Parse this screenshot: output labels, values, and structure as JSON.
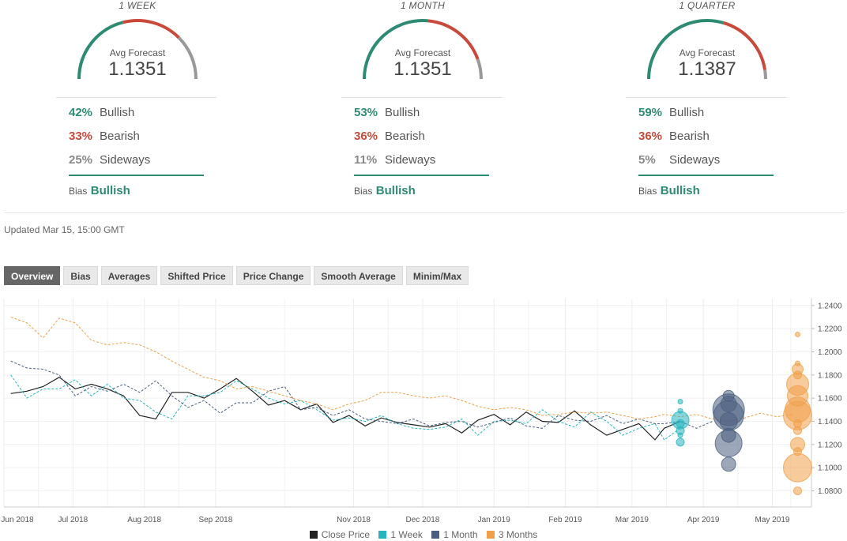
{
  "forecast_panels": [
    {
      "period": "1 WEEK",
      "avg_label": "Avg Forecast",
      "avg_value": "1.1351",
      "bullish_pct": "42%",
      "bullish_label": "Bullish",
      "bearish_pct": "33%",
      "bearish_label": "Bearish",
      "sideways_pct": "25%",
      "sideways_label": "Sideways",
      "bias_label": "Bias",
      "bias_value": "Bullish",
      "gauge": {
        "bullish": 0.42,
        "bearish": 0.33,
        "sideways": 0.25
      }
    },
    {
      "period": "1 MONTH",
      "avg_label": "Avg Forecast",
      "avg_value": "1.1351",
      "bullish_pct": "53%",
      "bullish_label": "Bullish",
      "bearish_pct": "36%",
      "bearish_label": "Bearish",
      "sideways_pct": "11%",
      "sideways_label": "Sideways",
      "bias_label": "Bias",
      "bias_value": "Bullish",
      "gauge": {
        "bullish": 0.53,
        "bearish": 0.36,
        "sideways": 0.11
      }
    },
    {
      "period": "1 QUARTER",
      "avg_label": "Avg Forecast",
      "avg_value": "1.1387",
      "bullish_pct": "59%",
      "bullish_label": "Bullish",
      "bearish_pct": "36%",
      "bearish_label": "Bearish",
      "sideways_pct": "5%",
      "sideways_label": "Sideways",
      "bias_label": "Bias",
      "bias_value": "Bullish",
      "gauge": {
        "bullish": 0.59,
        "bearish": 0.36,
        "sideways": 0.05
      }
    }
  ],
  "updated": "Updated Mar 15, 15:00 GMT",
  "tabs": [
    "Overview",
    "Bias",
    "Averages",
    "Shifted Price",
    "Price Change",
    "Smooth Average",
    "Minim/Max"
  ],
  "active_tab": "Overview",
  "colors": {
    "bullish": "#2e8b73",
    "bearish": "#c9493a",
    "sideways": "#999999",
    "close": "#222222",
    "week": "#26b5bf",
    "month": "#4a5f80",
    "quarter": "#f0a04b"
  },
  "chart_data": {
    "type": "line",
    "x_tick_labels": [
      "Jun 2018",
      "Jul 2018",
      "Aug 2018",
      "Sep 2018",
      "Nov 2018",
      "Dec 2018",
      "Jan 2019",
      "Feb 2019",
      "Mar 2019",
      "Apr 2019",
      "May 2019"
    ],
    "x_ticks": [
      "2018-06-01",
      "2018-07-01",
      "2018-08-01",
      "2018-09-01",
      "2018-10-31",
      "2018-11-30",
      "2018-12-31",
      "2019-01-31",
      "2019-03-01",
      "2019-04-01",
      "2019-05-01"
    ],
    "x_range": [
      "2018-06-01",
      "2019-05-18"
    ],
    "ylim": [
      1.066,
      1.246
    ],
    "y_ticks": [
      1.08,
      1.1,
      1.12,
      1.14,
      1.16,
      1.18,
      1.2,
      1.22,
      1.24
    ],
    "y_tick_labels": [
      "1.0800",
      "1.1000",
      "1.1200",
      "1.1400",
      "1.1600",
      "1.1800",
      "1.2000",
      "1.2200",
      "1.2400"
    ],
    "grid": true,
    "legend_position": "bottom",
    "series": [
      {
        "name": "Close Price",
        "style": "solid",
        "color_key": "close",
        "points": [
          [
            "2018-06-04",
            1.164
          ],
          [
            "2018-06-11",
            1.166
          ],
          [
            "2018-06-18",
            1.17
          ],
          [
            "2018-06-25",
            1.178
          ],
          [
            "2018-07-02",
            1.168
          ],
          [
            "2018-07-09",
            1.172
          ],
          [
            "2018-07-16",
            1.168
          ],
          [
            "2018-07-23",
            1.162
          ],
          [
            "2018-07-30",
            1.145
          ],
          [
            "2018-08-06",
            1.142
          ],
          [
            "2018-08-13",
            1.165
          ],
          [
            "2018-08-20",
            1.165
          ],
          [
            "2018-08-27",
            1.16
          ],
          [
            "2018-09-03",
            1.168
          ],
          [
            "2018-09-10",
            1.177
          ],
          [
            "2018-09-17",
            1.166
          ],
          [
            "2018-09-24",
            1.154
          ],
          [
            "2018-10-01",
            1.158
          ],
          [
            "2018-10-08",
            1.15
          ],
          [
            "2018-10-15",
            1.155
          ],
          [
            "2018-10-22",
            1.139
          ],
          [
            "2018-10-29",
            1.145
          ],
          [
            "2018-11-05",
            1.136
          ],
          [
            "2018-11-12",
            1.143
          ],
          [
            "2018-11-19",
            1.139
          ],
          [
            "2018-11-26",
            1.137
          ],
          [
            "2018-12-03",
            1.135
          ],
          [
            "2018-12-10",
            1.138
          ],
          [
            "2018-12-17",
            1.13
          ],
          [
            "2018-12-24",
            1.141
          ],
          [
            "2018-12-31",
            1.146
          ],
          [
            "2019-01-07",
            1.137
          ],
          [
            "2019-01-14",
            1.148
          ],
          [
            "2019-01-21",
            1.14
          ],
          [
            "2019-01-28",
            1.139
          ],
          [
            "2019-02-04",
            1.149
          ],
          [
            "2019-02-11",
            1.137
          ],
          [
            "2019-02-18",
            1.128
          ],
          [
            "2019-02-25",
            1.133
          ],
          [
            "2019-03-04",
            1.138
          ],
          [
            "2019-03-11",
            1.124
          ],
          [
            "2019-03-15",
            1.134
          ],
          [
            "2019-03-22",
            1.14
          ]
        ]
      },
      {
        "name": "1 Week",
        "style": "dashed",
        "color_key": "week",
        "points": [
          [
            "2018-06-04",
            1.18
          ],
          [
            "2018-06-11",
            1.16
          ],
          [
            "2018-06-18",
            1.168
          ],
          [
            "2018-06-25",
            1.168
          ],
          [
            "2018-07-02",
            1.176
          ],
          [
            "2018-07-09",
            1.162
          ],
          [
            "2018-07-16",
            1.172
          ],
          [
            "2018-07-23",
            1.16
          ],
          [
            "2018-07-30",
            1.158
          ],
          [
            "2018-08-06",
            1.148
          ],
          [
            "2018-08-13",
            1.142
          ],
          [
            "2018-08-20",
            1.162
          ],
          [
            "2018-08-27",
            1.162
          ],
          [
            "2018-09-03",
            1.165
          ],
          [
            "2018-09-10",
            1.175
          ],
          [
            "2018-09-17",
            1.168
          ],
          [
            "2018-09-24",
            1.16
          ],
          [
            "2018-10-01",
            1.155
          ],
          [
            "2018-10-08",
            1.158
          ],
          [
            "2018-10-15",
            1.15
          ],
          [
            "2018-10-22",
            1.141
          ],
          [
            "2018-10-29",
            1.143
          ],
          [
            "2018-11-05",
            1.14
          ],
          [
            "2018-11-12",
            1.145
          ],
          [
            "2018-11-19",
            1.138
          ],
          [
            "2018-11-26",
            1.134
          ],
          [
            "2018-12-03",
            1.133
          ],
          [
            "2018-12-10",
            1.135
          ],
          [
            "2018-12-17",
            1.142
          ],
          [
            "2018-12-24",
            1.128
          ],
          [
            "2018-12-31",
            1.14
          ],
          [
            "2019-01-07",
            1.141
          ],
          [
            "2019-01-14",
            1.138
          ],
          [
            "2019-01-21",
            1.15
          ],
          [
            "2019-01-28",
            1.14
          ],
          [
            "2019-02-04",
            1.135
          ],
          [
            "2019-02-11",
            1.148
          ],
          [
            "2019-02-18",
            1.14
          ],
          [
            "2019-02-25",
            1.128
          ],
          [
            "2019-03-04",
            1.134
          ],
          [
            "2019-03-11",
            1.138
          ],
          [
            "2019-03-15",
            1.124
          ],
          [
            "2019-03-22",
            1.134
          ]
        ]
      },
      {
        "name": "1 Month",
        "style": "dashed",
        "color_key": "month",
        "points": [
          [
            "2018-06-04",
            1.192
          ],
          [
            "2018-06-11",
            1.186
          ],
          [
            "2018-06-18",
            1.185
          ],
          [
            "2018-06-25",
            1.18
          ],
          [
            "2018-07-02",
            1.162
          ],
          [
            "2018-07-09",
            1.17
          ],
          [
            "2018-07-16",
            1.166
          ],
          [
            "2018-07-23",
            1.172
          ],
          [
            "2018-07-30",
            1.165
          ],
          [
            "2018-08-06",
            1.175
          ],
          [
            "2018-08-13",
            1.162
          ],
          [
            "2018-08-20",
            1.152
          ],
          [
            "2018-08-27",
            1.158
          ],
          [
            "2018-09-03",
            1.147
          ],
          [
            "2018-09-10",
            1.156
          ],
          [
            "2018-09-17",
            1.156
          ],
          [
            "2018-09-24",
            1.166
          ],
          [
            "2018-10-01",
            1.17
          ],
          [
            "2018-10-08",
            1.15
          ],
          [
            "2018-10-15",
            1.152
          ],
          [
            "2018-10-22",
            1.145
          ],
          [
            "2018-10-29",
            1.15
          ],
          [
            "2018-11-05",
            1.142
          ],
          [
            "2018-11-12",
            1.14
          ],
          [
            "2018-11-19",
            1.138
          ],
          [
            "2018-11-26",
            1.142
          ],
          [
            "2018-12-03",
            1.136
          ],
          [
            "2018-12-10",
            1.139
          ],
          [
            "2018-12-17",
            1.14
          ],
          [
            "2018-12-24",
            1.135
          ],
          [
            "2018-12-31",
            1.139
          ],
          [
            "2019-01-07",
            1.143
          ],
          [
            "2019-01-14",
            1.136
          ],
          [
            "2019-01-21",
            1.134
          ],
          [
            "2019-01-28",
            1.145
          ],
          [
            "2019-02-04",
            1.141
          ],
          [
            "2019-02-11",
            1.14
          ],
          [
            "2019-02-18",
            1.145
          ],
          [
            "2019-02-25",
            1.138
          ],
          [
            "2019-03-04",
            1.142
          ],
          [
            "2019-03-11",
            1.138
          ],
          [
            "2019-03-15",
            1.138
          ],
          [
            "2019-03-22",
            1.14
          ],
          [
            "2019-03-29",
            1.134
          ],
          [
            "2019-04-05",
            1.14
          ]
        ]
      },
      {
        "name": "3 Months",
        "style": "dashed",
        "color_key": "quarter",
        "points": [
          [
            "2018-06-04",
            1.23
          ],
          [
            "2018-06-11",
            1.225
          ],
          [
            "2018-06-18",
            1.212
          ],
          [
            "2018-06-25",
            1.229
          ],
          [
            "2018-07-02",
            1.225
          ],
          [
            "2018-07-09",
            1.21
          ],
          [
            "2018-07-16",
            1.206
          ],
          [
            "2018-07-23",
            1.208
          ],
          [
            "2018-07-30",
            1.206
          ],
          [
            "2018-08-06",
            1.2
          ],
          [
            "2018-08-13",
            1.192
          ],
          [
            "2018-08-20",
            1.185
          ],
          [
            "2018-08-27",
            1.178
          ],
          [
            "2018-09-03",
            1.175
          ],
          [
            "2018-09-10",
            1.168
          ],
          [
            "2018-09-17",
            1.17
          ],
          [
            "2018-09-24",
            1.166
          ],
          [
            "2018-10-01",
            1.162
          ],
          [
            "2018-10-08",
            1.158
          ],
          [
            "2018-10-15",
            1.155
          ],
          [
            "2018-10-22",
            1.15
          ],
          [
            "2018-10-29",
            1.155
          ],
          [
            "2018-11-05",
            1.158
          ],
          [
            "2018-11-12",
            1.165
          ],
          [
            "2018-11-19",
            1.165
          ],
          [
            "2018-11-26",
            1.162
          ],
          [
            "2018-12-03",
            1.16
          ],
          [
            "2018-12-10",
            1.162
          ],
          [
            "2018-12-17",
            1.158
          ],
          [
            "2018-12-24",
            1.153
          ],
          [
            "2018-12-31",
            1.15
          ],
          [
            "2019-01-07",
            1.152
          ],
          [
            "2019-01-14",
            1.15
          ],
          [
            "2019-01-21",
            1.145
          ],
          [
            "2019-01-28",
            1.146
          ],
          [
            "2019-02-04",
            1.148
          ],
          [
            "2019-02-11",
            1.147
          ],
          [
            "2019-02-18",
            1.148
          ],
          [
            "2019-02-25",
            1.145
          ],
          [
            "2019-03-04",
            1.142
          ],
          [
            "2019-03-11",
            1.144
          ],
          [
            "2019-03-15",
            1.146
          ],
          [
            "2019-03-22",
            1.144
          ],
          [
            "2019-03-29",
            1.146
          ],
          [
            "2019-04-05",
            1.142
          ],
          [
            "2019-04-12",
            1.14
          ],
          [
            "2019-04-19",
            1.143
          ],
          [
            "2019-04-26",
            1.147
          ],
          [
            "2019-05-03",
            1.144
          ],
          [
            "2019-05-10",
            1.146
          ]
        ]
      }
    ],
    "bubbles": [
      {
        "color_key": "week",
        "date": "2019-03-22",
        "points": [
          {
            "y": 1.157,
            "r": 3
          },
          {
            "y": 1.149,
            "r": 3
          },
          {
            "y": 1.141,
            "r": 11
          },
          {
            "y": 1.138,
            "r": 5
          },
          {
            "y": 1.132,
            "r": 5
          },
          {
            "y": 1.128,
            "r": 3
          },
          {
            "y": 1.122,
            "r": 5
          }
        ]
      },
      {
        "color_key": "month",
        "date": "2019-04-12",
        "points": [
          {
            "y": 1.162,
            "r": 7
          },
          {
            "y": 1.155,
            "r": 10
          },
          {
            "y": 1.15,
            "r": 20
          },
          {
            "y": 1.145,
            "r": 19
          },
          {
            "y": 1.14,
            "r": 11
          },
          {
            "y": 1.128,
            "r": 9
          },
          {
            "y": 1.121,
            "r": 17
          },
          {
            "y": 1.103,
            "r": 9
          }
        ]
      },
      {
        "color_key": "quarter",
        "date": "2019-05-12",
        "points": [
          {
            "y": 1.215,
            "r": 3
          },
          {
            "y": 1.19,
            "r": 3
          },
          {
            "y": 1.185,
            "r": 7
          },
          {
            "y": 1.18,
            "r": 5
          },
          {
            "y": 1.172,
            "r": 14
          },
          {
            "y": 1.162,
            "r": 13
          },
          {
            "y": 1.15,
            "r": 16
          },
          {
            "y": 1.145,
            "r": 18
          },
          {
            "y": 1.138,
            "r": 5
          },
          {
            "y": 1.132,
            "r": 5
          },
          {
            "y": 1.12,
            "r": 9
          },
          {
            "y": 1.114,
            "r": 5
          },
          {
            "y": 1.1,
            "r": 18
          },
          {
            "y": 1.08,
            "r": 5
          }
        ]
      }
    ]
  }
}
